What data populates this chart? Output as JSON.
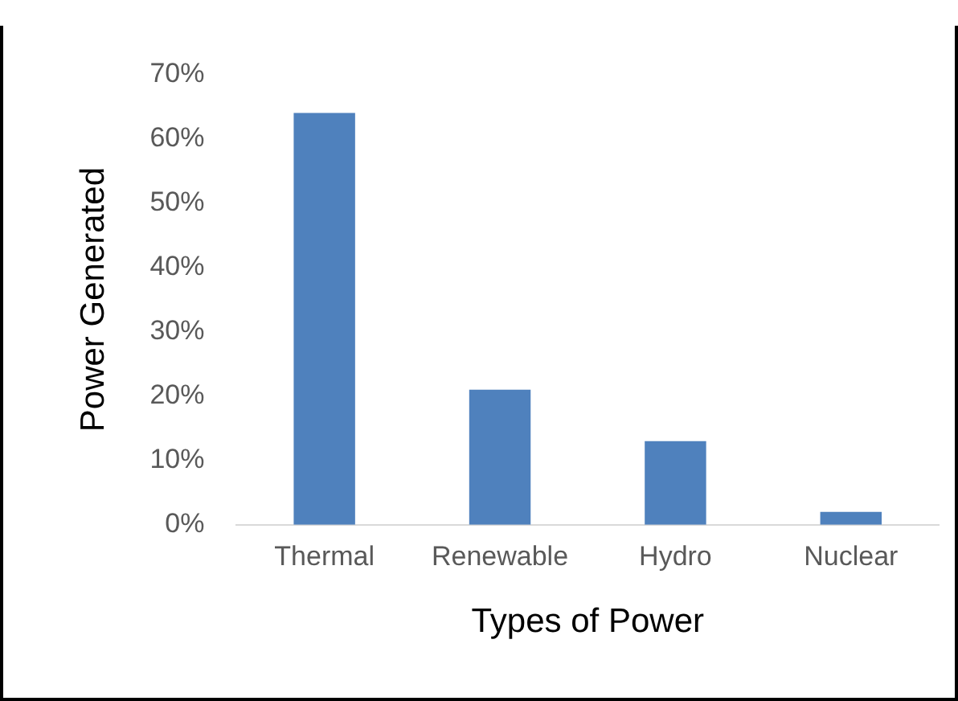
{
  "chart_data": {
    "type": "bar",
    "xlabel": "Types of Power",
    "ylabel": "Power Generated",
    "categories": [
      "Thermal",
      "Renewable",
      "Hydro",
      "Nuclear"
    ],
    "values": [
      64,
      21,
      13,
      2
    ],
    "color": "#4f81bd",
    "ylim": [
      0,
      70
    ],
    "yticks": [
      {
        "value": 0,
        "label": "0%"
      },
      {
        "value": 10,
        "label": "10%"
      },
      {
        "value": 20,
        "label": "20%"
      },
      {
        "value": 30,
        "label": "30%"
      },
      {
        "value": 40,
        "label": "40%"
      },
      {
        "value": 50,
        "label": "50%"
      },
      {
        "value": 60,
        "label": "60%"
      },
      {
        "value": 70,
        "label": "70%"
      }
    ],
    "grid": false
  }
}
